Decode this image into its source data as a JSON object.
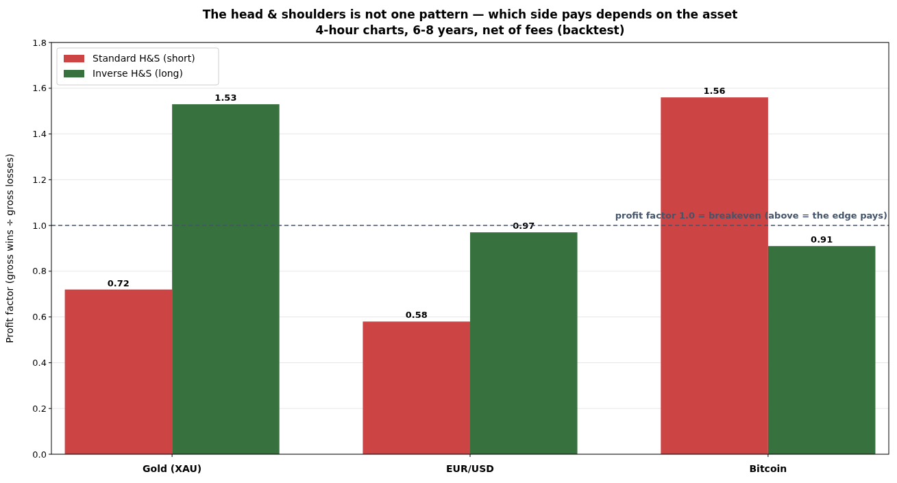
{
  "chart_data": {
    "type": "bar",
    "title": "The head & shoulders is not one pattern — which side pays depends on the asset",
    "subtitle": "4-hour charts, 6-8 years, net of fees (backtest)",
    "ylabel": "Profit factor (gross wins ÷ gross losses)",
    "categories": [
      "Gold (XAU)",
      "EUR/USD",
      "Bitcoin"
    ],
    "series": [
      {
        "name": "Standard H&S (short)",
        "color": "#cc4444",
        "values": [
          0.72,
          0.58,
          1.56
        ]
      },
      {
        "name": "Inverse H&S (long)",
        "color": "#37713d",
        "values": [
          1.53,
          0.97,
          0.91
        ]
      }
    ],
    "ylim": [
      0,
      1.8
    ],
    "yticks": [
      {
        "value": 0,
        "label": "0.0"
      },
      {
        "value": 0.2,
        "label": "0.2"
      },
      {
        "value": 0.4,
        "label": "0.4"
      },
      {
        "value": 0.6,
        "label": "0.6"
      },
      {
        "value": 0.8,
        "label": "0.8"
      },
      {
        "value": 1,
        "label": "1.0"
      },
      {
        "value": 1.2,
        "label": "1.2"
      },
      {
        "value": 1.4,
        "label": "1.4"
      },
      {
        "value": 1.6,
        "label": "1.6"
      },
      {
        "value": 1.8,
        "label": "1.8"
      }
    ],
    "grid": "y",
    "legend": "top left",
    "data_labels": true,
    "ref_lines": [
      {
        "axis": "y",
        "value": 1,
        "label": "profit factor 1.0 = breakeven (above = the edge pays)",
        "color": "#44546a",
        "line_style": "dashed"
      }
    ]
  }
}
